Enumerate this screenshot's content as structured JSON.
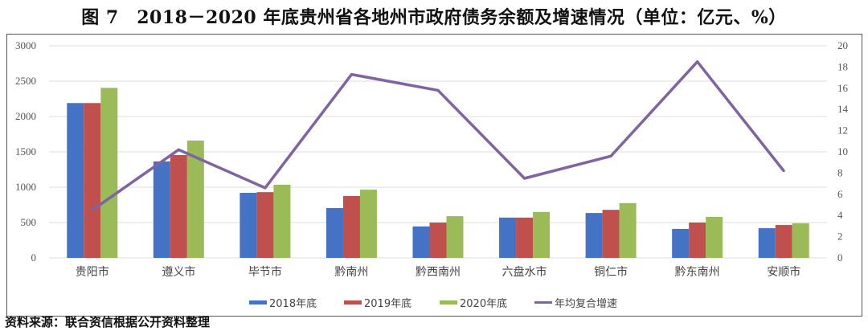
{
  "title": "图 7　2018－2020 年底贵州省各地州市政府债务余额及增速情况（单位：亿元、%）",
  "source": "资料来源：联合资信根据公开资料整理",
  "chart_data": {
    "type": "bar",
    "title": "图 7　2018－2020 年底贵州省各地州市政府债务余额及增速情况（单位：亿元、%）",
    "categories": [
      "贵阳市",
      "遵义市",
      "毕节市",
      "黔南州",
      "黔西南州",
      "六盘水市",
      "铜仁市",
      "黔东南州",
      "安顺市"
    ],
    "y_left": {
      "range": [
        0,
        3000
      ],
      "ticks": [
        0,
        500,
        1000,
        1500,
        2000,
        2500,
        3000
      ]
    },
    "y_right": {
      "range": [
        0,
        20
      ],
      "ticks": [
        0,
        2,
        4,
        6,
        8,
        10,
        12,
        14,
        16,
        18,
        20
      ]
    },
    "grid": true,
    "legend_placement": "bottom",
    "series": [
      {
        "name": "2018年底",
        "type": "bar",
        "axis": "left",
        "color": "#4472C4",
        "values": [
          2190,
          1365,
          920,
          705,
          445,
          570,
          635,
          410,
          420
        ]
      },
      {
        "name": "2019年底",
        "type": "bar",
        "axis": "left",
        "color": "#C0504D",
        "values": [
          2190,
          1455,
          930,
          875,
          500,
          570,
          680,
          500,
          465
        ]
      },
      {
        "name": "2020年底",
        "type": "bar",
        "axis": "left",
        "color": "#9BBB59",
        "values": [
          2405,
          1660,
          1035,
          965,
          590,
          650,
          775,
          580,
          490
        ]
      },
      {
        "name": "年均复合增速",
        "type": "line",
        "axis": "right",
        "color": "#8064A2",
        "values": [
          4.5,
          10.2,
          6.6,
          17.3,
          15.8,
          7.5,
          9.6,
          18.5,
          8.2
        ]
      }
    ]
  }
}
